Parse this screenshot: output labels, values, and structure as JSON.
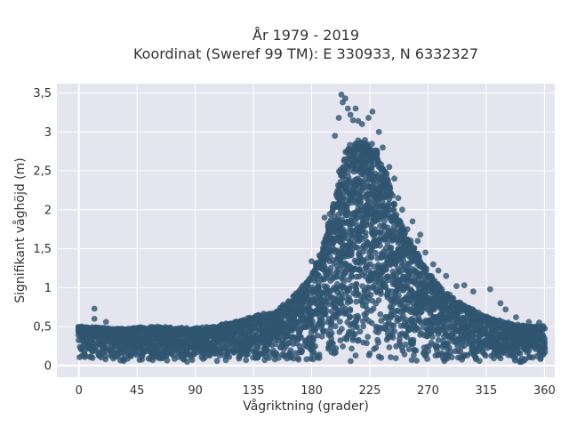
{
  "chart_data": {
    "type": "scatter",
    "title_lines": [
      "År 1979 - 2019",
      "Koordinat (Sweref 99 TM): E 330933, N 6332327"
    ],
    "xlabel": "Vågriktning (grader)",
    "ylabel": "Signifikant våghöjd (m)",
    "xlim": [
      -17,
      368
    ],
    "ylim": [
      -0.15,
      3.62
    ],
    "x_ticks": [
      0,
      45,
      90,
      135,
      180,
      225,
      270,
      315,
      360
    ],
    "x_tick_labels": [
      "0",
      "45",
      "90",
      "135",
      "180",
      "225",
      "270",
      "315",
      "360"
    ],
    "y_ticks": [
      0,
      0.5,
      1,
      1.5,
      2,
      2.5,
      3,
      3.5
    ],
    "y_tick_labels": [
      "0",
      "0,5",
      "1",
      "1,5",
      "2",
      "2,5",
      "3",
      "3,5"
    ],
    "grid": true,
    "marker_color": "#2f5570",
    "background_color": "#e5e5ef",
    "envelope": [
      [
        0,
        0.5
      ],
      [
        15,
        0.48
      ],
      [
        30,
        0.47
      ],
      [
        45,
        0.48
      ],
      [
        60,
        0.49
      ],
      [
        75,
        0.48
      ],
      [
        90,
        0.47
      ],
      [
        105,
        0.5
      ],
      [
        120,
        0.55
      ],
      [
        135,
        0.62
      ],
      [
        150,
        0.68
      ],
      [
        160,
        0.78
      ],
      [
        170,
        0.95
      ],
      [
        180,
        1.15
      ],
      [
        190,
        1.6
      ],
      [
        197,
        2.1
      ],
      [
        203,
        2.55
      ],
      [
        208,
        2.8
      ],
      [
        215,
        2.9
      ],
      [
        222,
        2.88
      ],
      [
        230,
        2.75
      ],
      [
        238,
        2.45
      ],
      [
        245,
        2.0
      ],
      [
        252,
        1.7
      ],
      [
        258,
        1.55
      ],
      [
        265,
        1.35
      ],
      [
        272,
        1.15
      ],
      [
        280,
        0.98
      ],
      [
        290,
        0.85
      ],
      [
        300,
        0.75
      ],
      [
        315,
        0.62
      ],
      [
        330,
        0.55
      ],
      [
        345,
        0.5
      ],
      [
        360,
        0.5
      ]
    ],
    "outliers": [
      [
        12,
        0.73
      ],
      [
        12,
        0.6
      ],
      [
        21,
        0.56
      ],
      [
        180,
        1.34
      ],
      [
        190,
        1.9
      ],
      [
        198,
        2.95
      ],
      [
        201,
        3.18
      ],
      [
        203,
        3.48
      ],
      [
        204,
        3.38
      ],
      [
        206,
        3.43
      ],
      [
        208,
        3.3
      ],
      [
        210,
        3.22
      ],
      [
        212,
        3.15
      ],
      [
        214,
        3.3
      ],
      [
        216,
        3.14
      ],
      [
        219,
        3.1
      ],
      [
        224,
        3.18
      ],
      [
        227,
        3.26
      ],
      [
        232,
        3.0
      ],
      [
        235,
        2.8
      ],
      [
        240,
        2.55
      ],
      [
        244,
        2.4
      ],
      [
        247,
        2.15
      ],
      [
        250,
        2.0
      ],
      [
        254,
        1.75
      ],
      [
        258,
        1.85
      ],
      [
        262,
        1.6
      ],
      [
        264,
        1.68
      ],
      [
        268,
        1.45
      ],
      [
        274,
        1.3
      ],
      [
        278,
        1.22
      ],
      [
        284,
        1.15
      ],
      [
        292,
        1.02
      ],
      [
        298,
        1.03
      ],
      [
        305,
        0.95
      ],
      [
        318,
        0.98
      ],
      [
        326,
        0.8
      ],
      [
        330,
        0.72
      ],
      [
        338,
        0.62
      ],
      [
        348,
        0.56
      ],
      [
        356,
        0.55
      ]
    ]
  }
}
